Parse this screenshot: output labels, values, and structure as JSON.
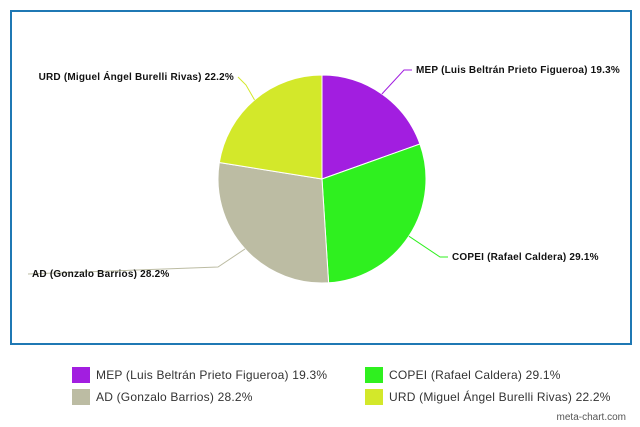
{
  "chart_data": {
    "type": "pie",
    "title": "",
    "slices": [
      {
        "label": "MEP (Luis Beltrán Prieto Figueroa)",
        "value": 19.3,
        "color": "#a21ee0"
      },
      {
        "label": "COPEI (Rafael Caldera)",
        "value": 29.1,
        "color": "#2ff01f"
      },
      {
        "label": "AD (Gonzalo Barrios)",
        "value": 28.2,
        "color": "#bcbca3"
      },
      {
        "label": "URD (Miguel Ángel Burelli Rivas)",
        "value": 22.2,
        "color": "#d3e82a"
      }
    ],
    "slice_labels": [
      "MEP (Luis Beltrán Prieto Figueroa) 19.3%",
      "COPEI (Rafael Caldera) 29.1%",
      "AD (Gonzalo Barrios) 28.2%",
      "URD (Miguel Ángel Burelli Rivas) 22.2%"
    ],
    "legend_placement": "bottom",
    "start": "top, clockwise"
  },
  "legend": {
    "items": [
      {
        "label": "MEP (Luis Beltrán Prieto Figueroa) 19.3%",
        "color": "#a21ee0"
      },
      {
        "label": "COPEI (Rafael Caldera) 29.1%",
        "color": "#2ff01f"
      },
      {
        "label": "AD (Gonzalo Barrios) 28.2%",
        "color": "#bcbca3"
      },
      {
        "label": "URD (Miguel Ángel Burelli Rivas) 22.2%",
        "color": "#d3e82a"
      }
    ]
  },
  "credit": "meta-chart.com",
  "colors": {
    "frame_border": "#1f78b4"
  }
}
